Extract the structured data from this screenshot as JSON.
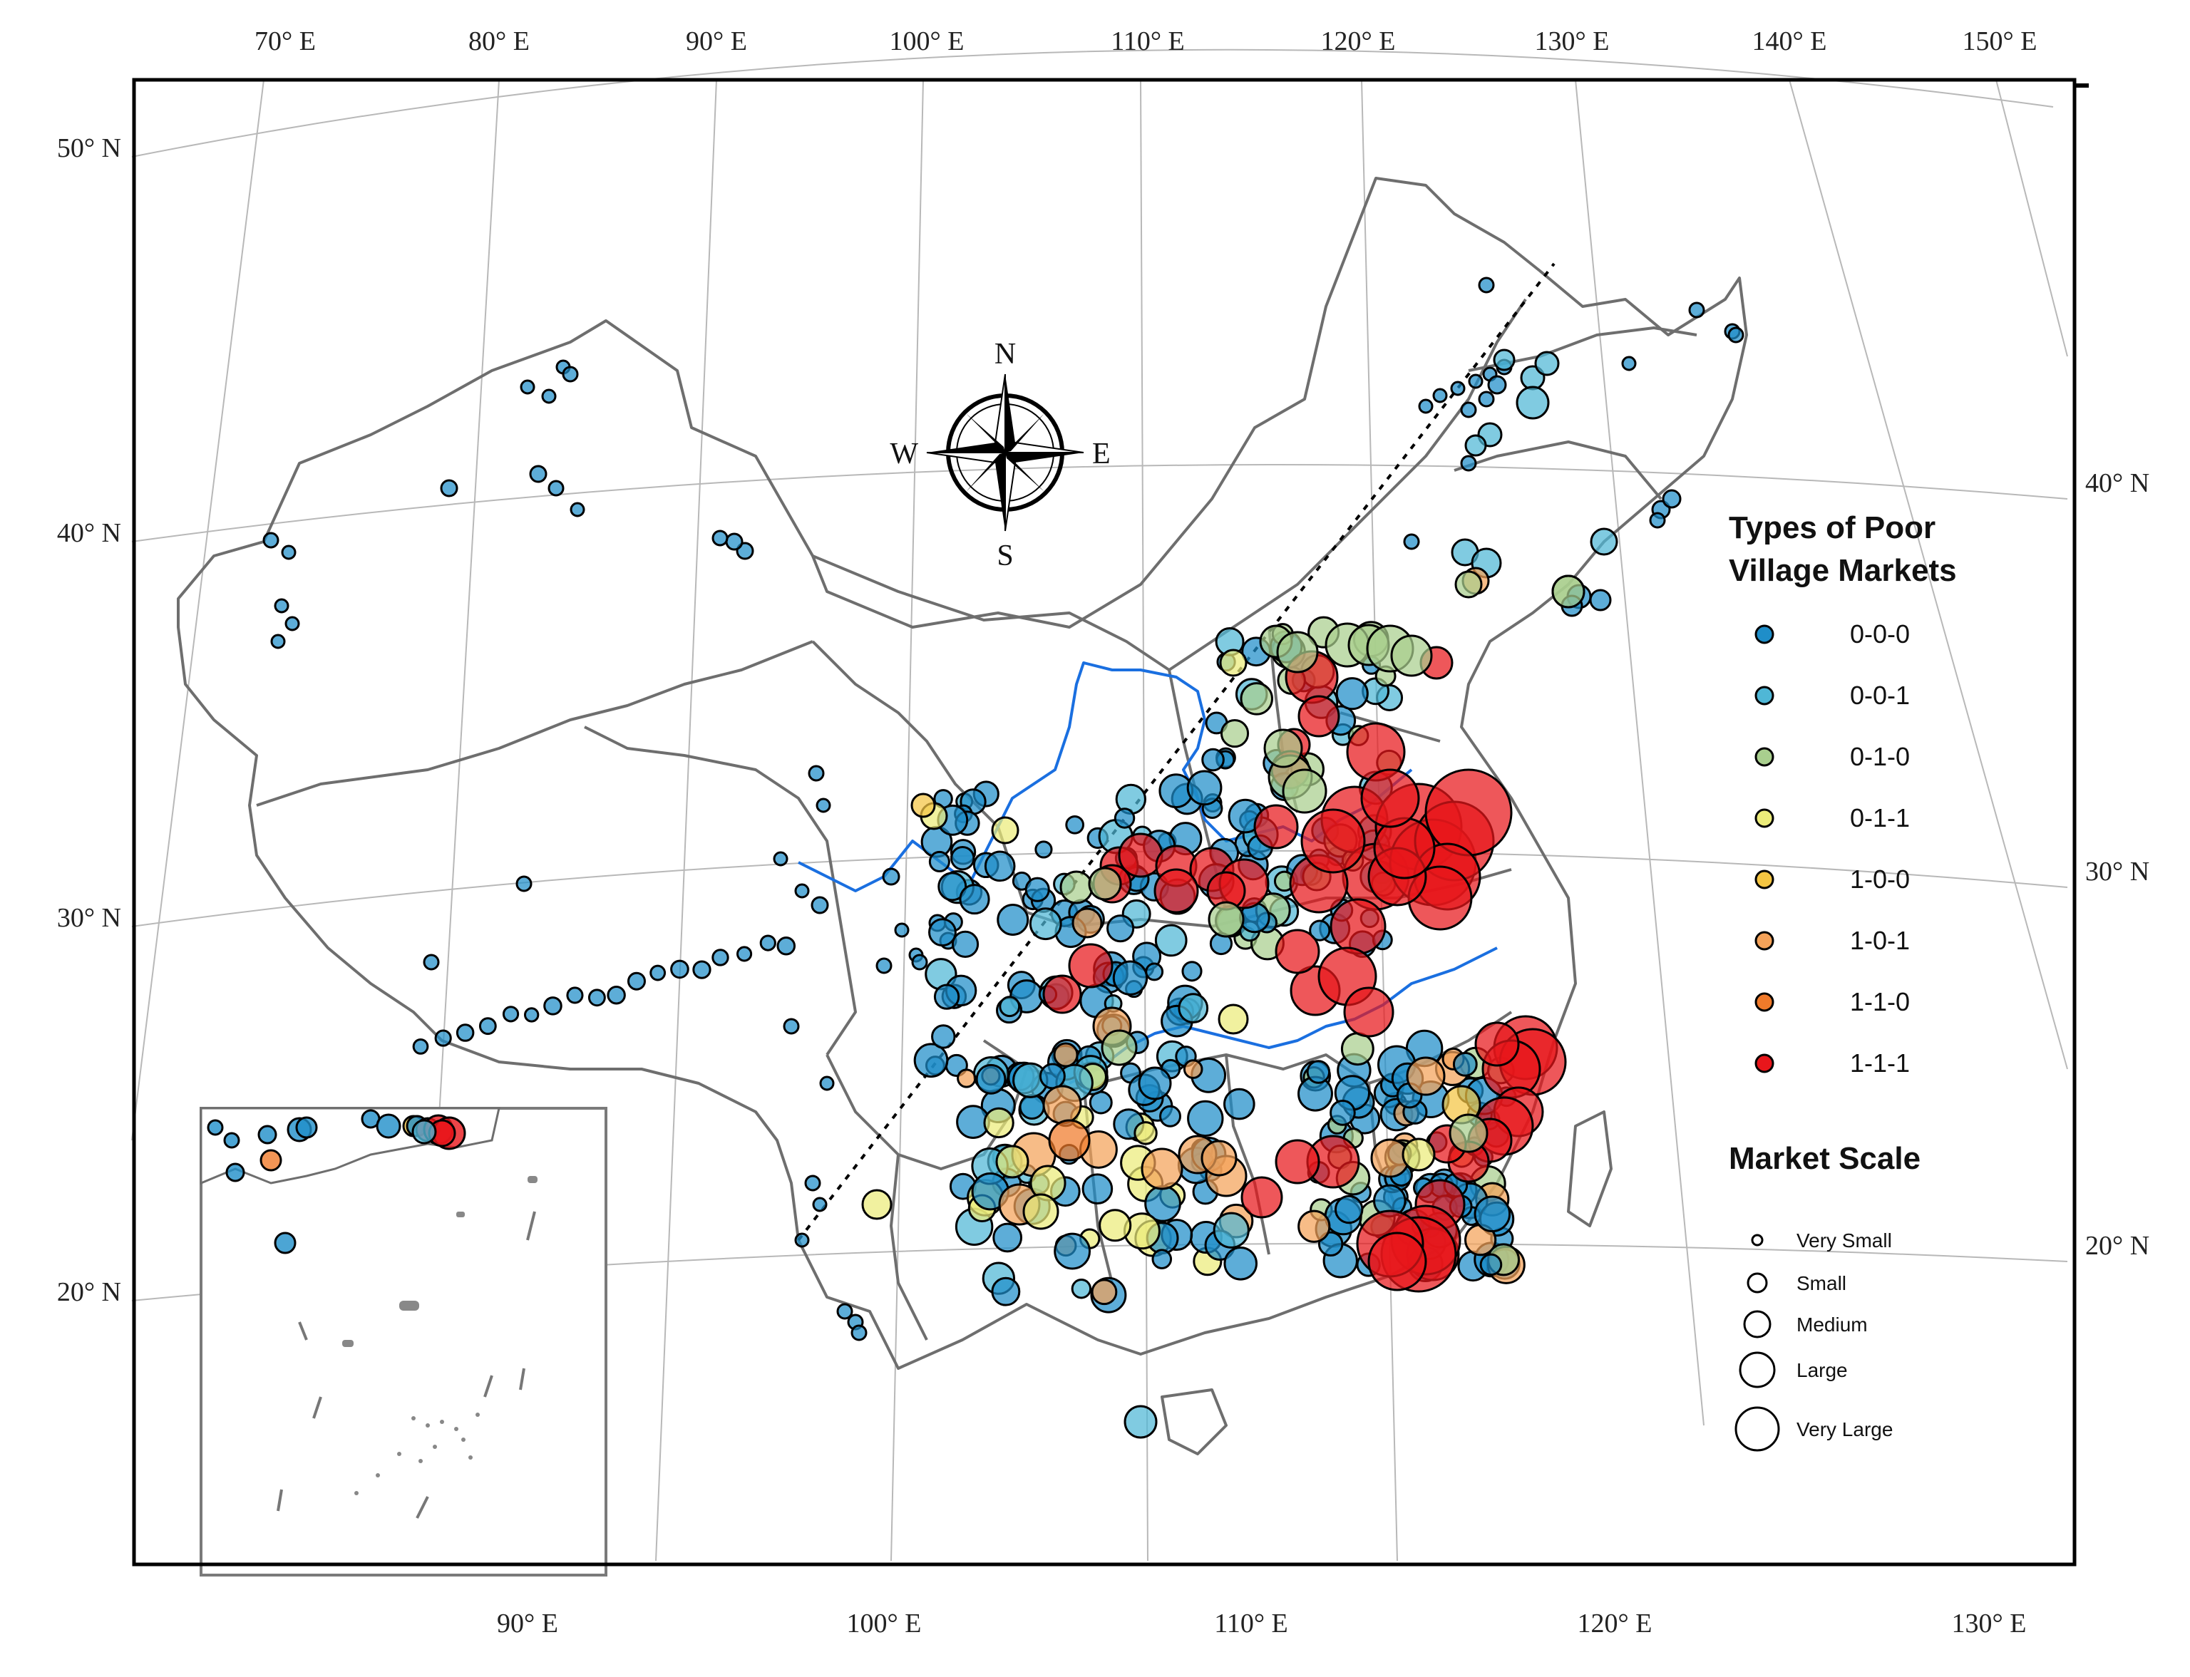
{
  "top_longitude_labels": [
    "70° E",
    "80° E",
    "90° E",
    "100° E",
    "110° E",
    "120° E",
    "130° E",
    "140° E",
    "150° E"
  ],
  "bottom_longitude_labels": [
    "90° E",
    "100° E",
    "110° E",
    "120° E",
    "130° E"
  ],
  "left_latitude_labels": [
    "50° N",
    "40° N",
    "30° N",
    "20° N"
  ],
  "right_latitude_labels": [
    "40° N",
    "30° N",
    "20° N"
  ],
  "compass": {
    "n": "N",
    "s": "S",
    "e": "E",
    "w": "W"
  },
  "legend_types": {
    "title_line1": "Types of Poor",
    "title_line2": "Village Markets",
    "items": [
      {
        "label": "0-0-0",
        "color": "#1f8ec9"
      },
      {
        "label": "0-0-1",
        "color": "#4fb7d6"
      },
      {
        "label": "0-1-0",
        "color": "#a9cf8e"
      },
      {
        "label": "0-1-1",
        "color": "#ecec7a"
      },
      {
        "label": "1-0-0",
        "color": "#f4c542"
      },
      {
        "label": "1-0-1",
        "color": "#f4a259"
      },
      {
        "label": "1-1-0",
        "color": "#f07a2a"
      },
      {
        "label": "1-1-1",
        "color": "#e8161b"
      }
    ]
  },
  "legend_scale": {
    "title": "Market Scale",
    "items": [
      "Very Small",
      "Small",
      "Medium",
      "Large",
      "Very Large"
    ]
  },
  "colors": {
    "river": "#1a6fe0",
    "boundary": "#6e6e6e",
    "grid": "#b8b8b8",
    "frame": "#000000"
  },
  "map_style": {
    "symbol_fill_opacity": "semi-transparent",
    "divider_line": "dashed"
  }
}
